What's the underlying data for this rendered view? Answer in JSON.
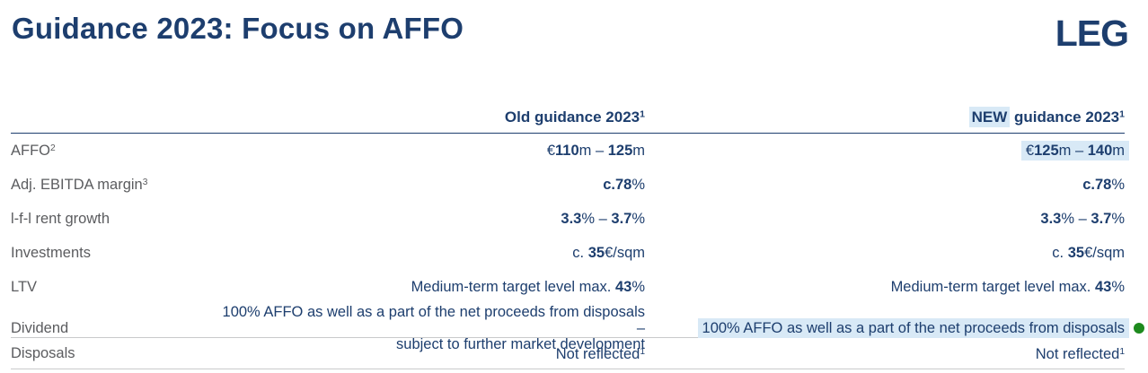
{
  "page": {
    "title": "Guidance 2023: Focus on AFFO",
    "logo_text": "LEG"
  },
  "colors": {
    "navy": "#1d3e6e",
    "label_gray": "#5b5c5f",
    "highlight_blue": "#d8e9f6",
    "divider_gray": "#c9cacb",
    "marker_green": "#1e8a1e"
  },
  "table": {
    "header": {
      "old": {
        "segments": [
          {
            "t": "Old guidance 2023",
            "b": true
          },
          {
            "t": "1",
            "b": true,
            "sup": true
          }
        ]
      },
      "new": {
        "segments": [
          {
            "t": "NEW",
            "b": true,
            "hl": true
          },
          {
            "t": " guidance 2023",
            "b": true
          },
          {
            "t": "1",
            "b": true,
            "sup": true
          }
        ]
      }
    },
    "rows": [
      {
        "id": "affo",
        "label": {
          "segments": [
            {
              "t": "AFFO"
            },
            {
              "t": "2",
              "sup": true
            }
          ]
        },
        "old": {
          "segments": [
            {
              "t": "€"
            },
            {
              "t": "110",
              "b": true
            },
            {
              "t": "m – "
            },
            {
              "t": "125",
              "b": true
            },
            {
              "t": "m"
            }
          ]
        },
        "new": {
          "highlight": true,
          "segments": [
            {
              "t": "€"
            },
            {
              "t": "125",
              "b": true
            },
            {
              "t": "m – "
            },
            {
              "t": "140",
              "b": true
            },
            {
              "t": "m"
            }
          ]
        }
      },
      {
        "id": "ebitda-margin",
        "label": {
          "segments": [
            {
              "t": "Adj. EBITDA margin"
            },
            {
              "t": "3",
              "sup": true
            }
          ]
        },
        "old": {
          "segments": [
            {
              "t": "c.78",
              "b": true
            },
            {
              "t": "%"
            }
          ]
        },
        "new": {
          "segments": [
            {
              "t": "c.78",
              "b": true
            },
            {
              "t": "%"
            }
          ]
        }
      },
      {
        "id": "lfl-rent-growth",
        "label": {
          "segments": [
            {
              "t": "l-f-l rent growth"
            }
          ]
        },
        "old": {
          "segments": [
            {
              "t": "3.3",
              "b": true
            },
            {
              "t": "% – "
            },
            {
              "t": "3.7",
              "b": true
            },
            {
              "t": "%"
            }
          ]
        },
        "new": {
          "segments": [
            {
              "t": "3.3",
              "b": true
            },
            {
              "t": "% – "
            },
            {
              "t": "3.7",
              "b": true
            },
            {
              "t": "%"
            }
          ]
        }
      },
      {
        "id": "investments",
        "label": {
          "segments": [
            {
              "t": "Investments"
            }
          ]
        },
        "old": {
          "segments": [
            {
              "t": "c. "
            },
            {
              "t": "35",
              "b": true
            },
            {
              "t": "€/sqm"
            }
          ]
        },
        "new": {
          "segments": [
            {
              "t": "c. "
            },
            {
              "t": "35",
              "b": true
            },
            {
              "t": "€/sqm"
            }
          ]
        }
      },
      {
        "id": "ltv",
        "label": {
          "segments": [
            {
              "t": "LTV"
            }
          ]
        },
        "old": {
          "segments": [
            {
              "t": "Medium-term target level max. "
            },
            {
              "t": "43",
              "b": true
            },
            {
              "t": "%"
            }
          ]
        },
        "new": {
          "segments": [
            {
              "t": "Medium-term target level max. "
            },
            {
              "t": "43",
              "b": true
            },
            {
              "t": "%"
            }
          ]
        }
      },
      {
        "id": "dividend",
        "rule": true,
        "label": {
          "segments": [
            {
              "t": "Dividend"
            }
          ]
        },
        "old": {
          "segments": [
            {
              "t": "100% AFFO as well as a part of the net proceeds from disposals –"
            },
            {
              "br": true
            },
            {
              "t": "subject to further market development"
            }
          ]
        },
        "new": {
          "highlight": true,
          "marker": "green-dot",
          "segments": [
            {
              "t": "100% AFFO as well as a part of the net proceeds from disposals"
            }
          ]
        }
      },
      {
        "id": "disposals",
        "rule": true,
        "short": true,
        "label": {
          "segments": [
            {
              "t": "Disposals"
            }
          ]
        },
        "old": {
          "segments": [
            {
              "t": "Not reflected"
            },
            {
              "t": "1",
              "sup": true
            }
          ]
        },
        "new": {
          "segments": [
            {
              "t": "Not reflected"
            },
            {
              "t": "1",
              "sup": true
            }
          ]
        }
      }
    ]
  }
}
